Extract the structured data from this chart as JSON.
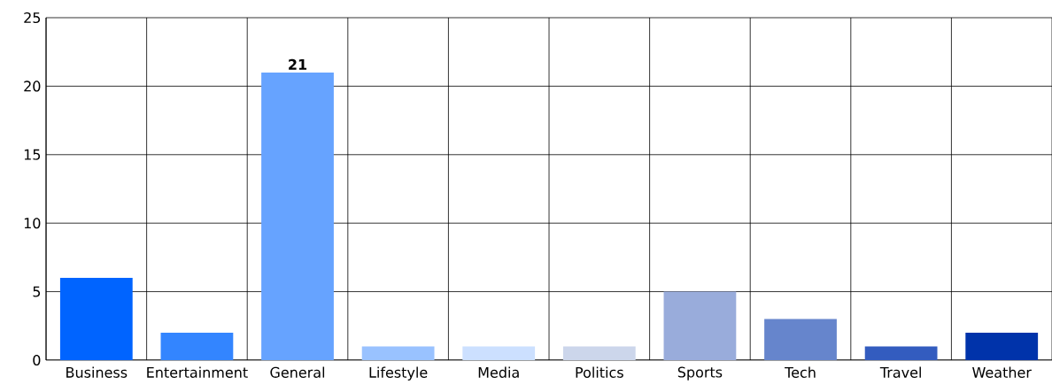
{
  "chart_data": {
    "type": "bar",
    "categories": [
      "Business",
      "Entertainment",
      "General",
      "Lifestyle",
      "Media",
      "Politics",
      "Sports",
      "Tech",
      "Travel",
      "Weather"
    ],
    "values": [
      6,
      2,
      21,
      1,
      1,
      1,
      5,
      3,
      1,
      2
    ],
    "colors": [
      "#0064ff",
      "#3385ff",
      "#66a3ff",
      "#99c2ff",
      "#cce0ff",
      "#ccd6eb",
      "#99acdb",
      "#6685cc",
      "#335cbf",
      "#0033aa"
    ],
    "value_labels": [
      null,
      null,
      "21",
      null,
      null,
      null,
      null,
      null,
      null,
      null
    ],
    "ylim": [
      0,
      25
    ],
    "yticks": [
      0,
      5,
      10,
      15,
      20,
      25
    ],
    "grid": true
  }
}
